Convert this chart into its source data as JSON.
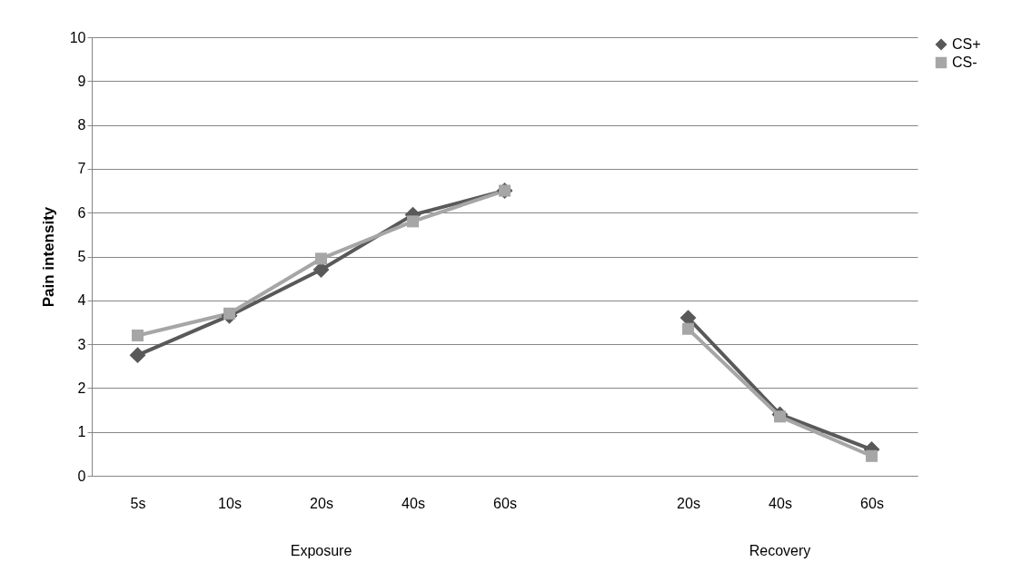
{
  "chart_data": {
    "type": "line",
    "ylabel": "Pain intensity",
    "categories": [
      "5s",
      "10s",
      "20s",
      "40s",
      "60s",
      null,
      "20s",
      "40s",
      "60s"
    ],
    "series": [
      {
        "name": "CS+",
        "color": "#595959",
        "marker": "diamond",
        "values": [
          2.75,
          3.65,
          4.7,
          5.95,
          6.5,
          null,
          3.6,
          1.4,
          0.6
        ]
      },
      {
        "name": "CS-",
        "color": "#a6a6a6",
        "marker": "square",
        "values": [
          3.2,
          3.7,
          4.95,
          5.8,
          6.5,
          null,
          3.35,
          1.35,
          0.45
        ]
      }
    ],
    "ylim": [
      0,
      10
    ],
    "yticks": [
      0,
      1,
      2,
      3,
      4,
      5,
      6,
      7,
      8,
      9,
      10
    ],
    "grid": "y",
    "legend": "right",
    "annotations": [
      "Exposure",
      "Recovery"
    ]
  }
}
